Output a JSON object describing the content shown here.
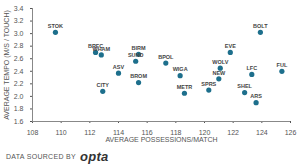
{
  "chart_data": {
    "type": "scatter",
    "xlabel": "AVERAGE POSSESSIONS/MATCH",
    "ylabel": "AVERAGE TEMPO (M/S / TOUCH)",
    "labels": [
      "STOK",
      "BRFC",
      "WHAM",
      "BIRM",
      "SUND",
      "ASV",
      "CITY",
      "BROM",
      "BPOL",
      "WIGA",
      "METR",
      "WOLV",
      "EVE",
      "NEW",
      "SPRS",
      "LFC",
      "SHEL",
      "ARS",
      "BOLT",
      "FUL"
    ],
    "x": [
      109.6,
      112.4,
      112.8,
      115.4,
      115.2,
      114.0,
      112.9,
      115.4,
      117.3,
      118.3,
      118.6,
      121.1,
      121.8,
      121.0,
      120.3,
      123.3,
      122.8,
      123.6,
      123.9,
      125.4
    ],
    "values": [
      3.02,
      2.7,
      2.66,
      2.67,
      2.56,
      2.37,
      2.08,
      2.22,
      2.53,
      2.33,
      2.05,
      2.45,
      2.7,
      2.28,
      2.1,
      2.35,
      2.06,
      1.9,
      3.02,
      2.4
    ],
    "color": "#1d6f8c",
    "marker": "circle",
    "xlim": [
      108,
      126
    ],
    "xticks": [
      108,
      110,
      112,
      114,
      116,
      118,
      120,
      122,
      124,
      126
    ],
    "ylim": [
      1.6,
      3.4
    ],
    "yticks": [
      1.6,
      1.8,
      {
        "value": 2,
        "label": "2.0"
      },
      2.2,
      2.4,
      2.6,
      2.8,
      {
        "value": 3,
        "label": "3.0"
      },
      3.2,
      3.4
    ],
    "grid": false,
    "source": "DATA SOURCED BY",
    "source_brand": "opta"
  }
}
